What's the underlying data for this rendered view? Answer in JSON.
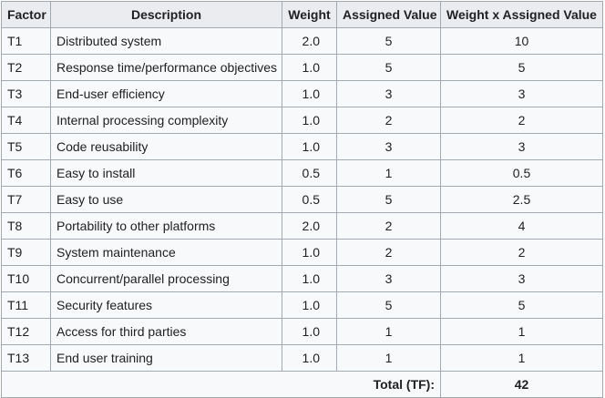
{
  "table": {
    "headers": [
      "Factor",
      "Description",
      "Weight",
      "Assigned Value",
      "Weight x Assigned Value"
    ],
    "rows": [
      {
        "factor": "T1",
        "description": "Distributed system",
        "weight": "2.0",
        "assigned": "5",
        "product": "10"
      },
      {
        "factor": "T2",
        "description": "Response time/performance objectives",
        "weight": "1.0",
        "assigned": "5",
        "product": "5"
      },
      {
        "factor": "T3",
        "description": "End-user efficiency",
        "weight": "1.0",
        "assigned": "3",
        "product": "3"
      },
      {
        "factor": "T4",
        "description": "Internal processing complexity",
        "weight": "1.0",
        "assigned": "2",
        "product": "2"
      },
      {
        "factor": "T5",
        "description": "Code reusability",
        "weight": "1.0",
        "assigned": "3",
        "product": "3"
      },
      {
        "factor": "T6",
        "description": "Easy to install",
        "weight": "0.5",
        "assigned": "1",
        "product": "0.5"
      },
      {
        "factor": "T7",
        "description": "Easy to use",
        "weight": "0.5",
        "assigned": "5",
        "product": "2.5"
      },
      {
        "factor": "T8",
        "description": "Portability to other platforms",
        "weight": "2.0",
        "assigned": "2",
        "product": "4"
      },
      {
        "factor": "T9",
        "description": "System maintenance",
        "weight": "1.0",
        "assigned": "2",
        "product": "2"
      },
      {
        "factor": "T10",
        "description": "Concurrent/parallel processing",
        "weight": "1.0",
        "assigned": "3",
        "product": "3"
      },
      {
        "factor": "T11",
        "description": "Security features",
        "weight": "1.0",
        "assigned": "5",
        "product": "5"
      },
      {
        "factor": "T12",
        "description": "Access for third parties",
        "weight": "1.0",
        "assigned": "1",
        "product": "1"
      },
      {
        "factor": "T13",
        "description": "End user training",
        "weight": "1.0",
        "assigned": "1",
        "product": "1"
      }
    ],
    "total_label": "Total (TF):",
    "total_value": "42"
  }
}
